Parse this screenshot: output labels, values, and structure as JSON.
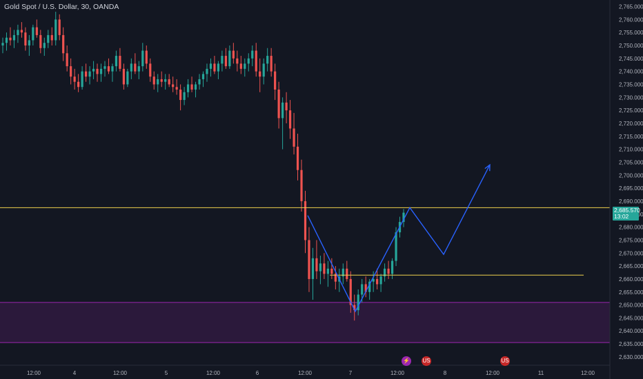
{
  "title": "Gold Spot / U.S. Dollar, 30, OANDA",
  "price_tag": {
    "price": "2,685.570",
    "countdown": "13:02"
  },
  "colors": {
    "background": "#131722",
    "up": "#26a69a",
    "down": "#ef5350",
    "projection": "#2962ff",
    "horizontal": "#f0d24c",
    "zone": "#9c27b0",
    "axis_text": "#b2b5be"
  },
  "events": [
    {
      "icon": "lightning-icon",
      "glyph": "⚡"
    },
    {
      "icon": "us-flag-icon",
      "glyph": "US"
    },
    {
      "icon": "us-flag-icon",
      "glyph": "US"
    }
  ],
  "chart_data": {
    "type": "candlestick",
    "symbol": "Gold Spot / U.S. Dollar",
    "interval": "30",
    "source": "OANDA",
    "y_axis": {
      "ticks": [
        2630,
        2635,
        2640,
        2645,
        2650,
        2655,
        2660,
        2665,
        2670,
        2675,
        2680,
        2685,
        2690,
        2695,
        2700,
        2705,
        2710,
        2715,
        2720,
        2725,
        2730,
        2735,
        2740,
        2745,
        2750,
        2755,
        2760,
        2765
      ],
      "tick_labels": [
        "2,630.000",
        "2,635.000",
        "2,640.000",
        "2,645.000",
        "2,650.000",
        "2,655.000",
        "2,660.000",
        "2,665.000",
        "2,670.000",
        "2,675.000",
        "2,680.000",
        "2,685.000",
        "2,690.000",
        "2,695.000",
        "2,700.000",
        "2,705.000",
        "2,710.000",
        "2,715.000",
        "2,720.000",
        "2,725.000",
        "2,730.000",
        "2,735.000",
        "2,740.000",
        "2,745.000",
        "2,750.000",
        "2,755.000",
        "2,760.000",
        "2,765.000"
      ],
      "ylim": [
        2629,
        2766
      ]
    },
    "x_axis": {
      "tick_labels": [
        "12:00",
        "4",
        "12:00",
        "5",
        "12:00",
        "6",
        "12:00",
        "7",
        "12:00",
        "8",
        "12:00",
        "11",
        "12:00"
      ]
    },
    "candles_ohlc": [
      [
        2750,
        2753,
        2747,
        2751
      ],
      [
        2751,
        2755,
        2748,
        2753
      ],
      [
        2753,
        2757,
        2750,
        2752
      ],
      [
        2752,
        2756,
        2749,
        2754
      ],
      [
        2754,
        2758,
        2751,
        2756
      ],
      [
        2756,
        2759,
        2753,
        2755
      ],
      [
        2755,
        2757,
        2748,
        2750
      ],
      [
        2750,
        2754,
        2746,
        2752
      ],
      [
        2752,
        2758,
        2750,
        2757
      ],
      [
        2757,
        2760,
        2753,
        2754
      ],
      [
        2754,
        2756,
        2747,
        2749
      ],
      [
        2749,
        2753,
        2746,
        2751
      ],
      [
        2751,
        2756,
        2749,
        2754
      ],
      [
        2754,
        2757,
        2750,
        2752
      ],
      [
        2752,
        2763,
        2750,
        2760
      ],
      [
        2760,
        2762,
        2752,
        2754
      ],
      [
        2754,
        2757,
        2744,
        2747
      ],
      [
        2747,
        2750,
        2740,
        2742
      ],
      [
        2742,
        2745,
        2735,
        2738
      ],
      [
        2738,
        2741,
        2733,
        2736
      ],
      [
        2736,
        2739,
        2732,
        2734
      ],
      [
        2734,
        2742,
        2733,
        2740
      ],
      [
        2740,
        2743,
        2736,
        2738
      ],
      [
        2738,
        2742,
        2735,
        2740
      ],
      [
        2740,
        2744,
        2737,
        2741
      ],
      [
        2741,
        2743,
        2736,
        2739
      ],
      [
        2739,
        2743,
        2736,
        2741
      ],
      [
        2741,
        2744,
        2738,
        2742
      ],
      [
        2742,
        2745,
        2739,
        2740
      ],
      [
        2740,
        2743,
        2736,
        2742
      ],
      [
        2742,
        2748,
        2740,
        2746
      ],
      [
        2746,
        2749,
        2740,
        2741
      ],
      [
        2741,
        2743,
        2733,
        2735
      ],
      [
        2735,
        2741,
        2734,
        2740
      ],
      [
        2740,
        2745,
        2737,
        2743
      ],
      [
        2743,
        2747,
        2739,
        2740
      ],
      [
        2740,
        2744,
        2737,
        2742
      ],
      [
        2742,
        2751,
        2740,
        2748
      ],
      [
        2748,
        2750,
        2741,
        2743
      ],
      [
        2743,
        2745,
        2736,
        2738
      ],
      [
        2738,
        2740,
        2733,
        2735
      ],
      [
        2735,
        2739,
        2732,
        2737
      ],
      [
        2737,
        2740,
        2734,
        2736
      ],
      [
        2736,
        2739,
        2733,
        2737
      ],
      [
        2737,
        2739,
        2734,
        2735
      ],
      [
        2735,
        2738,
        2732,
        2734
      ],
      [
        2734,
        2737,
        2731,
        2733
      ],
      [
        2733,
        2735,
        2725,
        2729
      ],
      [
        2729,
        2734,
        2727,
        2732
      ],
      [
        2732,
        2737,
        2730,
        2735
      ],
      [
        2735,
        2738,
        2732,
        2733
      ],
      [
        2733,
        2736,
        2730,
        2735
      ],
      [
        2735,
        2739,
        2733,
        2737
      ],
      [
        2737,
        2740,
        2734,
        2739
      ],
      [
        2739,
        2743,
        2736,
        2741
      ],
      [
        2741,
        2745,
        2738,
        2743
      ],
      [
        2743,
        2746,
        2739,
        2740
      ],
      [
        2740,
        2744,
        2737,
        2743
      ],
      [
        2743,
        2748,
        2740,
        2746
      ],
      [
        2746,
        2749,
        2741,
        2742
      ],
      [
        2742,
        2750,
        2741,
        2748
      ],
      [
        2748,
        2751,
        2743,
        2745
      ],
      [
        2745,
        2748,
        2740,
        2743
      ],
      [
        2743,
        2746,
        2739,
        2741
      ],
      [
        2741,
        2745,
        2738,
        2743
      ],
      [
        2743,
        2747,
        2740,
        2745
      ],
      [
        2745,
        2750,
        2742,
        2748
      ],
      [
        2748,
        2751,
        2738,
        2740
      ],
      [
        2740,
        2745,
        2732,
        2738
      ],
      [
        2738,
        2745,
        2735,
        2743
      ],
      [
        2743,
        2749,
        2740,
        2746
      ],
      [
        2746,
        2749,
        2738,
        2740
      ],
      [
        2740,
        2743,
        2729,
        2733
      ],
      [
        2733,
        2736,
        2718,
        2722
      ],
      [
        2722,
        2730,
        2710,
        2728
      ],
      [
        2728,
        2732,
        2720,
        2725
      ],
      [
        2725,
        2729,
        2714,
        2718
      ],
      [
        2718,
        2724,
        2708,
        2711
      ],
      [
        2711,
        2716,
        2698,
        2702
      ],
      [
        2702,
        2706,
        2686,
        2690
      ],
      [
        2690,
        2694,
        2670,
        2675
      ],
      [
        2675,
        2680,
        2655,
        2660
      ],
      [
        2660,
        2672,
        2652,
        2668
      ],
      [
        2668,
        2675,
        2660,
        2663
      ],
      [
        2663,
        2669,
        2658,
        2666
      ],
      [
        2666,
        2670,
        2660,
        2662
      ],
      [
        2662,
        2667,
        2657,
        2664
      ],
      [
        2664,
        2668,
        2660,
        2662
      ],
      [
        2662,
        2665,
        2656,
        2659
      ],
      [
        2659,
        2664,
        2655,
        2661
      ],
      [
        2661,
        2666,
        2658,
        2664
      ],
      [
        2664,
        2667,
        2659,
        2660
      ],
      [
        2660,
        2663,
        2647,
        2650
      ],
      [
        2650,
        2654,
        2644,
        2648
      ],
      [
        2648,
        2656,
        2646,
        2654
      ],
      [
        2654,
        2660,
        2651,
        2658
      ],
      [
        2658,
        2661,
        2653,
        2655
      ],
      [
        2655,
        2660,
        2652,
        2659
      ],
      [
        2659,
        2663,
        2655,
        2660
      ],
      [
        2660,
        2664,
        2656,
        2658
      ],
      [
        2658,
        2662,
        2655,
        2661
      ],
      [
        2661,
        2666,
        2659,
        2664
      ],
      [
        2664,
        2667,
        2660,
        2662
      ],
      [
        2662,
        2668,
        2660,
        2667
      ],
      [
        2667,
        2680,
        2665,
        2678
      ],
      [
        2678,
        2684,
        2676,
        2682
      ],
      [
        2682,
        2687,
        2680,
        2685.57
      ]
    ],
    "horizontal_lines": [
      2687.5,
      2661.5
    ],
    "zone": {
      "top": 2651,
      "bottom": 2635.5
    },
    "projection_path": [
      [
        2684.5,
        0
      ],
      [
        2647.5,
        1
      ],
      [
        2687.5,
        2
      ],
      [
        2669.5,
        3
      ],
      [
        2704,
        4
      ]
    ]
  }
}
